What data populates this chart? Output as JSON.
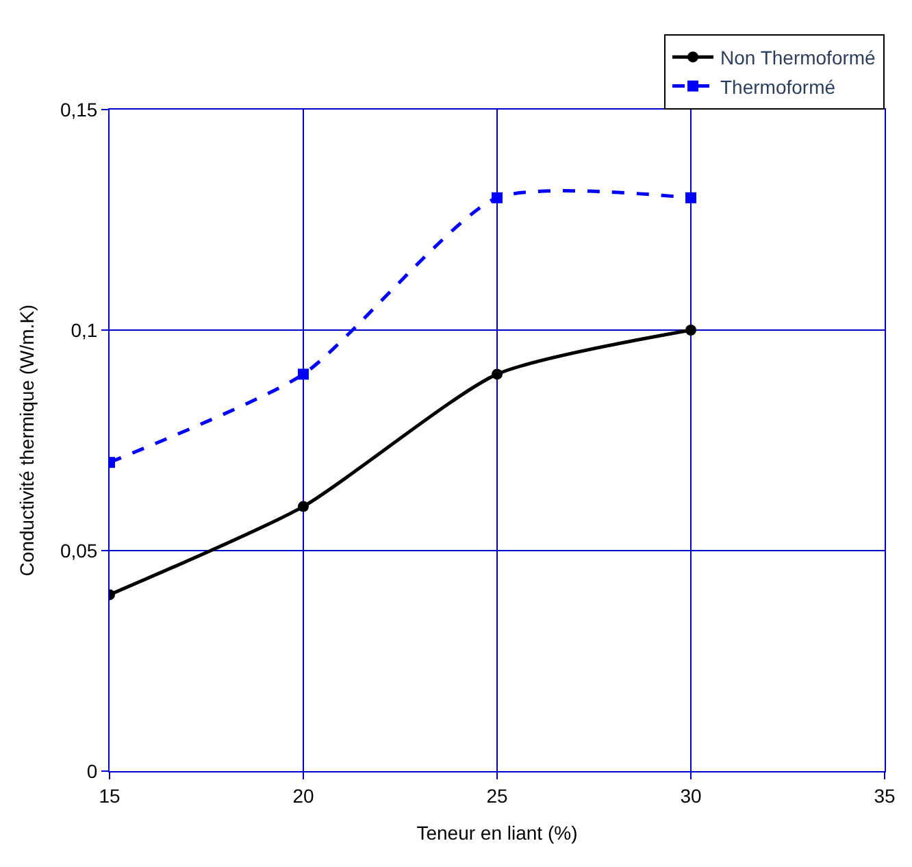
{
  "chart_data": {
    "type": "line",
    "xlabel": "Teneur en liant (%)",
    "ylabel": "Conductivité thermique (W/m.K)",
    "x": [
      15,
      20,
      25,
      30
    ],
    "series": [
      {
        "name": "Non Thermoformé",
        "color": "#000000",
        "values": [
          0.04,
          0.06,
          0.09,
          0.1
        ],
        "marker": "circle",
        "line_style": "solid"
      },
      {
        "name": "Thermoformé",
        "color": "#0000ff",
        "values": [
          0.07,
          0.09,
          0.13,
          0.13
        ],
        "marker": "square",
        "line_style": "dashed"
      }
    ],
    "xlim": [
      15,
      35
    ],
    "xticks": [
      15,
      20,
      25,
      30,
      35
    ],
    "ylim": [
      0,
      0.15
    ],
    "yticks": [
      {
        "value": 0,
        "label": "0"
      },
      {
        "value": 0.05,
        "label": "0,05"
      },
      {
        "value": 0.1,
        "label": "0,1"
      },
      {
        "value": 0.15,
        "label": "0,15"
      }
    ],
    "grid": true,
    "legend": "top right"
  }
}
